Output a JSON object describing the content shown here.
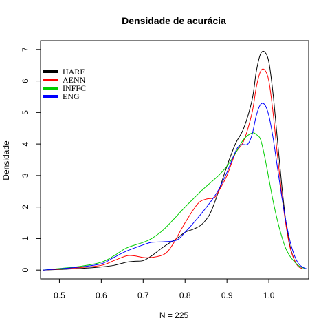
{
  "chart_data": {
    "type": "line",
    "title": "Densidade de acurácia",
    "xlabel": "N = 225",
    "ylabel": "Densidade",
    "xlim": [
      0.455,
      1.095
    ],
    "ylim": [
      -0.28,
      7.28
    ],
    "xticks": [
      0.5,
      0.6,
      0.7,
      0.8,
      0.9,
      1.0
    ],
    "xtick_labels": [
      "0.5",
      "0.6",
      "0.7",
      "0.8",
      "0.9",
      "1.0"
    ],
    "yticks": [
      0,
      1,
      2,
      3,
      4,
      5,
      6,
      7
    ],
    "ytick_labels": [
      "0",
      "1",
      "2",
      "3",
      "4",
      "5",
      "6",
      "7"
    ],
    "grid": false,
    "legend_position": "top-left",
    "series": [
      {
        "name": "HARF",
        "color": "#000000",
        "x": [
          0.46,
          0.5,
          0.55,
          0.6,
          0.63,
          0.66,
          0.68,
          0.7,
          0.72,
          0.75,
          0.78,
          0.8,
          0.82,
          0.84,
          0.86,
          0.88,
          0.9,
          0.92,
          0.94,
          0.96,
          0.97,
          0.98,
          0.99,
          1.0,
          1.01,
          1.02,
          1.03,
          1.04,
          1.05,
          1.06,
          1.07,
          1.08
        ],
        "y": [
          0.0,
          0.02,
          0.05,
          0.1,
          0.15,
          0.25,
          0.28,
          0.3,
          0.45,
          0.75,
          1.0,
          1.2,
          1.3,
          1.45,
          1.8,
          2.5,
          3.3,
          4.0,
          4.5,
          5.4,
          6.3,
          6.85,
          6.92,
          6.6,
          5.6,
          4.2,
          2.8,
          1.6,
          0.8,
          0.35,
          0.12,
          0.05
        ]
      },
      {
        "name": "AENN",
        "color": "#ff0000",
        "x": [
          0.46,
          0.5,
          0.55,
          0.6,
          0.63,
          0.66,
          0.68,
          0.7,
          0.72,
          0.75,
          0.77,
          0.8,
          0.83,
          0.85,
          0.87,
          0.88,
          0.9,
          0.92,
          0.94,
          0.96,
          0.97,
          0.98,
          0.99,
          1.0,
          1.01,
          1.02,
          1.03,
          1.04,
          1.05,
          1.06,
          1.07,
          1.08
        ],
        "y": [
          0.0,
          0.03,
          0.08,
          0.15,
          0.3,
          0.45,
          0.45,
          0.4,
          0.4,
          0.5,
          0.8,
          1.5,
          2.1,
          2.25,
          2.3,
          2.5,
          3.0,
          3.7,
          4.1,
          5.0,
          5.8,
          6.3,
          6.35,
          6.0,
          5.0,
          3.7,
          2.5,
          1.5,
          0.75,
          0.35,
          0.12,
          0.05
        ]
      },
      {
        "name": "INFFC",
        "color": "#00cd00",
        "x": [
          0.46,
          0.5,
          0.55,
          0.6,
          0.63,
          0.66,
          0.7,
          0.72,
          0.75,
          0.8,
          0.83,
          0.85,
          0.88,
          0.9,
          0.92,
          0.94,
          0.96,
          0.97,
          0.98,
          0.99,
          1.0,
          1.01,
          1.02,
          1.03,
          1.04,
          1.05,
          1.06,
          1.07,
          1.08,
          1.09
        ],
        "y": [
          0.0,
          0.05,
          0.12,
          0.25,
          0.45,
          0.7,
          0.88,
          1.0,
          1.3,
          2.0,
          2.4,
          2.65,
          3.0,
          3.3,
          3.7,
          4.15,
          4.35,
          4.3,
          4.15,
          3.6,
          2.9,
          2.2,
          1.6,
          1.1,
          0.7,
          0.45,
          0.28,
          0.15,
          0.08,
          0.04
        ]
      },
      {
        "name": "ENG",
        "color": "#0000ff",
        "x": [
          0.46,
          0.5,
          0.55,
          0.6,
          0.63,
          0.66,
          0.7,
          0.72,
          0.75,
          0.78,
          0.8,
          0.83,
          0.86,
          0.88,
          0.9,
          0.92,
          0.93,
          0.94,
          0.95,
          0.96,
          0.97,
          0.98,
          0.99,
          1.0,
          1.01,
          1.02,
          1.03,
          1.04,
          1.05,
          1.06,
          1.07,
          1.08,
          1.09
        ],
        "y": [
          0.0,
          0.04,
          0.1,
          0.2,
          0.4,
          0.6,
          0.8,
          0.88,
          0.9,
          0.95,
          1.2,
          1.65,
          2.15,
          2.55,
          3.1,
          3.75,
          3.95,
          3.98,
          4.0,
          4.3,
          4.9,
          5.25,
          5.25,
          4.9,
          4.2,
          3.3,
          2.4,
          1.6,
          0.95,
          0.5,
          0.22,
          0.1,
          0.04
        ]
      }
    ]
  }
}
